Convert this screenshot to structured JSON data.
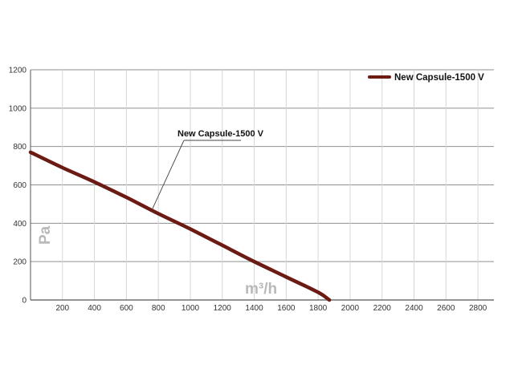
{
  "chart_data": {
    "type": "line",
    "title": "",
    "xlabel": "m³/h",
    "ylabel": "Pa",
    "xlim": [
      0,
      2900
    ],
    "ylim": [
      0,
      1200
    ],
    "x_ticks": [
      "200",
      "400",
      "600",
      "800",
      "1000",
      "1200",
      "1400",
      "1600",
      "1800",
      "2000",
      "2200",
      "2400",
      "2600",
      "2800"
    ],
    "y_ticks": [
      "0",
      "200",
      "400",
      "600",
      "800",
      "1000",
      "1200"
    ],
    "grid": {
      "horizontal": true,
      "vertical": true
    },
    "legend_position": "top-right",
    "annotation": {
      "text": "New Capsule-1500 V"
    },
    "series": [
      {
        "name": "New Capsule-1500 V",
        "color": "#6b1a14",
        "x": [
          0,
          200,
          400,
          600,
          800,
          1000,
          1200,
          1400,
          1600,
          1800,
          1870
        ],
        "y": [
          770,
          690,
          615,
          535,
          450,
          370,
          285,
          200,
          120,
          40,
          0
        ]
      }
    ]
  }
}
